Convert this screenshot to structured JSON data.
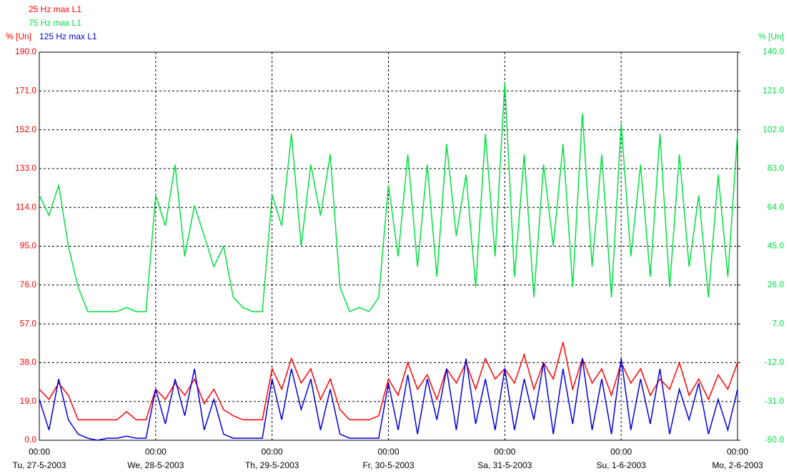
{
  "chart_data": {
    "type": "line",
    "x": [
      "27-5-2003 00:00",
      "27-5-2003 02:00",
      "27-5-2003 04:00",
      "27-5-2003 06:00",
      "27-5-2003 08:00",
      "27-5-2003 10:00",
      "27-5-2003 12:00",
      "27-5-2003 14:00",
      "27-5-2003 16:00",
      "27-5-2003 18:00",
      "27-5-2003 20:00",
      "27-5-2003 22:00",
      "28-5-2003 00:00",
      "28-5-2003 02:00",
      "28-5-2003 04:00",
      "28-5-2003 06:00",
      "28-5-2003 08:00",
      "28-5-2003 10:00",
      "28-5-2003 12:00",
      "28-5-2003 14:00",
      "28-5-2003 16:00",
      "28-5-2003 18:00",
      "28-5-2003 20:00",
      "28-5-2003 22:00",
      "29-5-2003 00:00",
      "29-5-2003 02:00",
      "29-5-2003 04:00",
      "29-5-2003 06:00",
      "29-5-2003 08:00",
      "29-5-2003 10:00",
      "29-5-2003 12:00",
      "29-5-2003 14:00",
      "29-5-2003 16:00",
      "29-5-2003 18:00",
      "29-5-2003 20:00",
      "29-5-2003 22:00",
      "30-5-2003 00:00",
      "30-5-2003 02:00",
      "30-5-2003 04:00",
      "30-5-2003 06:00",
      "30-5-2003 08:00",
      "30-5-2003 10:00",
      "30-5-2003 12:00",
      "30-5-2003 14:00",
      "30-5-2003 16:00",
      "30-5-2003 18:00",
      "30-5-2003 20:00",
      "30-5-2003 22:00",
      "31-5-2003 00:00",
      "31-5-2003 02:00",
      "31-5-2003 04:00",
      "31-5-2003 06:00",
      "31-5-2003 08:00",
      "31-5-2003 10:00",
      "31-5-2003 12:00",
      "31-5-2003 14:00",
      "31-5-2003 16:00",
      "31-5-2003 18:00",
      "31-5-2003 20:00",
      "31-5-2003 22:00",
      "1-6-2003 00:00",
      "1-6-2003 02:00",
      "1-6-2003 04:00",
      "1-6-2003 06:00",
      "1-6-2003 08:00",
      "1-6-2003 10:00",
      "1-6-2003 12:00",
      "1-6-2003 14:00",
      "1-6-2003 16:00",
      "1-6-2003 18:00",
      "1-6-2003 20:00",
      "1-6-2003 22:00",
      "2-6-2003 00:00"
    ],
    "xlim": [
      "27-5-2003 00:00",
      "2-6-2003 00:00"
    ],
    "xticks": [
      {
        "value": "27-5-2003 00:00",
        "label": [
          "00:00",
          "Tu, 27-5-2003"
        ]
      },
      {
        "value": "28-5-2003 00:00",
        "label": [
          "00:00",
          "We, 28-5-2003"
        ]
      },
      {
        "value": "29-5-2003 00:00",
        "label": [
          "00:00",
          "Th, 29-5-2003"
        ]
      },
      {
        "value": "30-5-2003 00:00",
        "label": [
          "00:00",
          "Fr, 30-5-2003"
        ]
      },
      {
        "value": "31-5-2003 00:00",
        "label": [
          "00:00",
          "Sa, 31-5-2003"
        ]
      },
      {
        "value": "1-6-2003 00:00",
        "label": [
          "00:00",
          "Su, 1-6-2003"
        ]
      },
      {
        "value": "2-6-2003 00:00",
        "label": [
          "00:00",
          "Mo, 2-6-2003"
        ]
      }
    ],
    "ylabel": "% [Un]",
    "y2label": "% [Un]",
    "ylabel_color": "#ff0000",
    "y2label_color": "#00dd44",
    "ylim": [
      0,
      190
    ],
    "yticks": [
      {
        "value": 0,
        "label": "0.0"
      },
      {
        "value": 19,
        "label": "19.0"
      },
      {
        "value": 38,
        "label": "38.0"
      },
      {
        "value": 57,
        "label": "57.0"
      },
      {
        "value": 76,
        "label": "76.0"
      },
      {
        "value": 95,
        "label": "95.0"
      },
      {
        "value": 114,
        "label": "114.0"
      },
      {
        "value": 133,
        "label": "133.0"
      },
      {
        "value": 152,
        "label": "152.0"
      },
      {
        "value": 171,
        "label": "171.0"
      },
      {
        "value": 190,
        "label": "190.0"
      }
    ],
    "y2lim": [
      -50,
      140
    ],
    "y2ticks": [
      {
        "value": -50,
        "label": "-50.0"
      },
      {
        "value": -31,
        "label": "-31.0"
      },
      {
        "value": -12,
        "label": "-12.0"
      },
      {
        "value": 7,
        "label": "7.0"
      },
      {
        "value": 26,
        "label": "26.0"
      },
      {
        "value": 45,
        "label": "45.0"
      },
      {
        "value": 64,
        "label": "64.0"
      },
      {
        "value": 83,
        "label": "83.0"
      },
      {
        "value": 102,
        "label": "102.0"
      },
      {
        "value": 121,
        "label": "121.0"
      },
      {
        "value": 140,
        "label": "140.0"
      }
    ],
    "grid": true,
    "series": [
      {
        "name": "25 Hz max L1",
        "color": "#ff0000",
        "axis": "y",
        "values": [
          25,
          20,
          28,
          22,
          10,
          10,
          10,
          10,
          10,
          14,
          10,
          10,
          25,
          20,
          28,
          22,
          30,
          18,
          25,
          15,
          12,
          10,
          10,
          10,
          35,
          25,
          40,
          28,
          35,
          20,
          30,
          15,
          10,
          10,
          10,
          12,
          30,
          22,
          38,
          25,
          32,
          20,
          35,
          28,
          38,
          25,
          40,
          30,
          35,
          28,
          42,
          25,
          38,
          30,
          48,
          25,
          40,
          28,
          35,
          22,
          38,
          28,
          35,
          22,
          30,
          25,
          38,
          22,
          30,
          20,
          32,
          25,
          38
        ]
      },
      {
        "name": "75 Hz max L1",
        "color": "#00e040",
        "axis": "y2",
        "values": [
          70,
          60,
          75,
          45,
          25,
          13,
          13,
          13,
          13,
          15,
          13,
          13,
          70,
          55,
          85,
          40,
          65,
          50,
          35,
          45,
          20,
          15,
          13,
          13,
          70,
          55,
          100,
          45,
          85,
          60,
          90,
          25,
          13,
          15,
          13,
          20,
          75,
          40,
          90,
          35,
          85,
          30,
          95,
          50,
          80,
          25,
          100,
          40,
          125,
          30,
          90,
          20,
          85,
          45,
          95,
          25,
          110,
          35,
          90,
          20,
          105,
          40,
          85,
          30,
          100,
          25,
          90,
          35,
          70,
          20,
          80,
          30,
          100
        ]
      },
      {
        "name": "125 Hz max L1",
        "color": "#0000dd",
        "axis": "y",
        "values": [
          20,
          5,
          30,
          10,
          3,
          1,
          0,
          1,
          1,
          2,
          1,
          1,
          25,
          8,
          30,
          12,
          35,
          5,
          20,
          3,
          1,
          1,
          1,
          1,
          30,
          10,
          35,
          15,
          30,
          5,
          25,
          3,
          1,
          1,
          1,
          1,
          28,
          5,
          32,
          3,
          30,
          10,
          35,
          5,
          40,
          8,
          30,
          5,
          35,
          5,
          30,
          10,
          38,
          3,
          35,
          8,
          40,
          5,
          30,
          3,
          40,
          5,
          30,
          8,
          35,
          3,
          25,
          10,
          28,
          3,
          20,
          5,
          25
        ]
      }
    ]
  }
}
